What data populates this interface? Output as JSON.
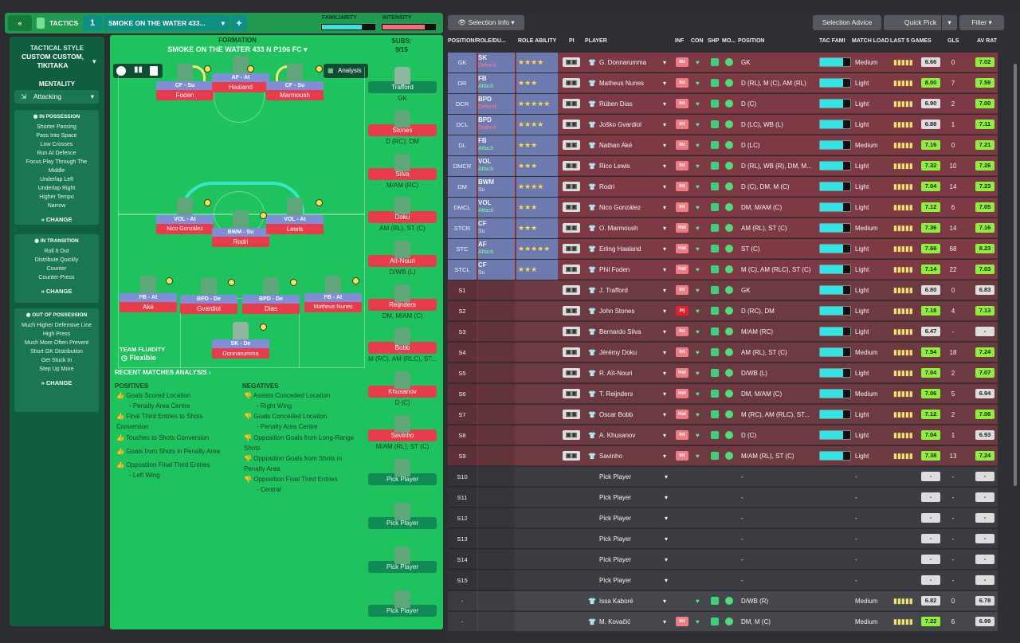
{
  "topbar": {
    "back": "«",
    "tactics_label": "TACTICS",
    "slot": "1",
    "tactic_name": "SMOKE ON THE WATER 433...",
    "add": "+",
    "familiarity": "FAMILIARITY",
    "intensity": "INTENSITY"
  },
  "left": {
    "style_label": "TACTICAL STYLE",
    "style_value": "CUSTOM CUSTOM, TIKITAKA",
    "mentality_label": "MENTALITY",
    "mentality_value": "Attacking",
    "possession": {
      "title": "IN POSSESSION",
      "items": [
        "Shorter Passing",
        "Pass Into Space",
        "Low Crosses",
        "Run At Defence",
        "Focus Play Through The Middle",
        "Underlap Left",
        "Underlap Right",
        "Higher Tempo",
        "Narrow"
      ]
    },
    "transition": {
      "title": "IN TRANSITION",
      "items": [
        "Roll It Out",
        "Distribute Quickly",
        "Counter",
        "Counter-Press"
      ]
    },
    "outposs": {
      "title": "OUT OF POSSESSION",
      "items": [
        "Much Higher Defensive Line",
        "High Press",
        "Much More Often Prevent Short GK Distribution",
        "Get Stuck In",
        "Step Up More"
      ]
    },
    "change": "CHANGE"
  },
  "pitch": {
    "formation_label": "FORMATION",
    "formation_name": "SMOKE ON THE WATER 433 N P106 FC",
    "analysis": "Analysis",
    "subs_label": "SUBS:",
    "subs_count": "9/15",
    "team_fluidity": "TEAM FLUIDITY",
    "fluidity_value": "Flexible",
    "players": [
      {
        "role": "CF - Su",
        "name": "Foden"
      },
      {
        "role": "AF - At",
        "name": "Haaland"
      },
      {
        "role": "CF - Su",
        "name": "Marmoush"
      },
      {
        "role": "VOL - At",
        "name": "Nico González"
      },
      {
        "role": "BWM - Su",
        "name": "Rodri"
      },
      {
        "role": "VOL - At",
        "name": "Lewis"
      },
      {
        "role": "FB - At",
        "name": "Aké"
      },
      {
        "role": "BPD - De",
        "name": "Gvardiol"
      },
      {
        "role": "BPD - De",
        "name": "Dias"
      },
      {
        "role": "FB - At",
        "name": "Matheus Nunes"
      },
      {
        "role": "SK - De",
        "name": "Donnarumma"
      }
    ],
    "subs": [
      {
        "name": "Trafford",
        "pos": "GK"
      },
      {
        "name": "Stones",
        "pos": "D (RC), DM"
      },
      {
        "name": "Silva",
        "pos": "M/AM (RC)"
      },
      {
        "name": "Doku",
        "pos": "AM (RL), ST (C)"
      },
      {
        "name": "Aït-Nouri",
        "pos": "D/WB (L)"
      },
      {
        "name": "Reijnders",
        "pos": "DM, M/AM (C)"
      },
      {
        "name": "Bobb",
        "pos": "M (RC), AM (RLC), ST..."
      },
      {
        "name": "Khusanov",
        "pos": "D (C)"
      },
      {
        "name": "Savinho",
        "pos": "M/AM (RL), ST (C)"
      }
    ],
    "pick": "Pick Player",
    "recent": "RECENT MATCHES ANALYSIS",
    "positives_label": "POSITIVES",
    "negatives_label": "NEGATIVES",
    "positives": [
      [
        "Goals Scored Location",
        "- Penalty Area Centre"
      ],
      [
        "Final Third Entries to Shots Conversion",
        ""
      ],
      [
        "Touches to Shots Conversion",
        ""
      ],
      [
        "Goals from Shots in Penalty Area",
        ""
      ],
      [
        "Opposition Final Third Entries",
        "- Left Wing"
      ]
    ],
    "negatives": [
      [
        "Assists Conceded Location",
        "- Right Wing"
      ],
      [
        "Goals Conceded Location",
        "- Penalty Area Centre"
      ],
      [
        "Opposition Goals from Long-Range Shots",
        ""
      ],
      [
        "Opposition Goals from Shots in Penalty Area",
        ""
      ],
      [
        "Opposition Final Third Entries",
        "- Central"
      ]
    ]
  },
  "right": {
    "selection_info": "Selection Info",
    "selection_advice": "Selection Advice",
    "quick_pick": "Quick Pick",
    "filter": "Filter",
    "cols": [
      "POSITION/ROLE/DU...",
      "ROLE ABILITY",
      "PI",
      "PLAYER",
      "INF",
      "CON",
      "SHP",
      "MO...",
      "POSITION",
      "TAC FAMI",
      "MATCH LOAD",
      "LAST 5 GAMES",
      "GLS",
      "AV RAT"
    ],
    "rows": [
      {
        "pos": "GK",
        "role": "SK",
        "duty": "Defend",
        "stars": "★★★★",
        "player": "G. Donnarumma",
        "position": "GK",
        "load": "Medium",
        "last": "6.66",
        "gls": "0",
        "av": "7.02",
        "inf": "Int"
      },
      {
        "pos": "DR",
        "role": "FB",
        "duty": "Attack",
        "stars": "★★★",
        "player": "Matheus Nunes",
        "position": "D (RL), M (C), AM (RL)",
        "load": "Light",
        "last": "8.00",
        "gls": "7",
        "av": "7.59",
        "inf": "Int"
      },
      {
        "pos": "DCR",
        "role": "BPD",
        "duty": "Defend",
        "stars": "★★★★★",
        "player": "Rúben Dias",
        "position": "D (C)",
        "load": "Light",
        "last": "6.90",
        "gls": "2",
        "av": "7.00",
        "inf": "Int"
      },
      {
        "pos": "DCL",
        "role": "BPD",
        "duty": "Defend",
        "stars": "★★★★",
        "player": "Joško Gvardiol",
        "position": "D (LC), WB (L)",
        "load": "Light",
        "last": "6.88",
        "gls": "1",
        "av": "7.11",
        "inf": "Int"
      },
      {
        "pos": "DL",
        "role": "FB",
        "duty": "Attack",
        "stars": "★★★",
        "player": "Nathan Aké",
        "position": "D (LC)",
        "load": "Medium",
        "last": "7.16",
        "gls": "0",
        "av": "7.21",
        "inf": "Int"
      },
      {
        "pos": "DMCR",
        "role": "VOL",
        "duty": "Attack",
        "stars": "★★★",
        "player": "Rico Lewis",
        "position": "D (RL), WB (R), DM, M...",
        "load": "Light",
        "last": "7.32",
        "gls": "10",
        "av": "7.26",
        "inf": "Int"
      },
      {
        "pos": "DM",
        "role": "BWM",
        "duty": "Su",
        "stars": "★★★★",
        "player": "Rodri",
        "position": "D (C), DM, M (C)",
        "load": "Light",
        "last": "7.04",
        "gls": "14",
        "av": "7.23",
        "inf": "Int"
      },
      {
        "pos": "DMCL",
        "role": "VOL",
        "duty": "Attack",
        "stars": "★★★",
        "player": "Nico González",
        "position": "DM, M/AM (C)",
        "load": "Light",
        "last": "7.12",
        "gls": "6",
        "av": "7.05",
        "inf": "Int"
      },
      {
        "pos": "STCR",
        "role": "CF",
        "duty": "Su",
        "stars": "★★★",
        "player": "O. Marmoush",
        "position": "AM (RL), ST (C)",
        "load": "Medium",
        "last": "7.36",
        "gls": "14",
        "av": "7.16",
        "inf": "Hol"
      },
      {
        "pos": "STC",
        "role": "AF",
        "duty": "Attack",
        "stars": "★★★★★",
        "player": "Erling Haaland",
        "position": "ST (C)",
        "load": "Light",
        "last": "7.66",
        "gls": "68",
        "av": "8.23",
        "inf": "Hol"
      },
      {
        "pos": "STCL",
        "role": "CF",
        "duty": "Su",
        "stars": "★★★",
        "player": "Phil Foden",
        "position": "M (C), AM (RLC), ST (C)",
        "load": "Light",
        "last": "7.14",
        "gls": "22",
        "av": "7.03",
        "inf": "Hol"
      },
      {
        "pos": "S1",
        "role": "",
        "duty": "",
        "stars": "",
        "player": "J. Trafford",
        "position": "GK",
        "load": "Light",
        "last": "6.80",
        "gls": "0",
        "av": "6.83",
        "inf": "Int"
      },
      {
        "pos": "S2",
        "role": "",
        "duty": "",
        "stars": "",
        "player": "John Stones",
        "position": "D (RC), DM",
        "load": "Light",
        "last": "7.18",
        "gls": "4",
        "av": "7.13",
        "inf": "Inj"
      },
      {
        "pos": "S3",
        "role": "",
        "duty": "",
        "stars": "",
        "player": "Bernardo Silva",
        "position": "M/AM (RC)",
        "load": "Light",
        "last": "6.47",
        "gls": "-",
        "av": "-",
        "inf": "Int"
      },
      {
        "pos": "S4",
        "role": "",
        "duty": "",
        "stars": "",
        "player": "Jérémy Doku",
        "position": "AM (RL), ST (C)",
        "load": "Medium",
        "last": "7.54",
        "gls": "18",
        "av": "7.24",
        "inf": "Int"
      },
      {
        "pos": "S5",
        "role": "",
        "duty": "",
        "stars": "",
        "player": "R. Aït-Nouri",
        "position": "D/WB (L)",
        "load": "Light",
        "last": "7.04",
        "gls": "2",
        "av": "7.07",
        "inf": "Hol"
      },
      {
        "pos": "S6",
        "role": "",
        "duty": "",
        "stars": "",
        "player": "T. Reijnders",
        "position": "DM, M/AM (C)",
        "load": "Medium",
        "last": "7.06",
        "gls": "5",
        "av": "6.94",
        "inf": "Hol"
      },
      {
        "pos": "S7",
        "role": "",
        "duty": "",
        "stars": "",
        "player": "Oscar Bobb",
        "position": "M (RC), AM (RLC), ST...",
        "load": "Light",
        "last": "7.12",
        "gls": "2",
        "av": "7.06",
        "inf": "Hol"
      },
      {
        "pos": "S8",
        "role": "",
        "duty": "",
        "stars": "",
        "player": "A. Khusanov",
        "position": "D (C)",
        "load": "Light",
        "last": "7.04",
        "gls": "1",
        "av": "6.93",
        "inf": "Int"
      },
      {
        "pos": "S9",
        "role": "",
        "duty": "",
        "stars": "",
        "player": "Savinho",
        "position": "M/AM (RL), ST (C)",
        "load": "Light",
        "last": "7.38",
        "gls": "13",
        "av": "7.24",
        "inf": "Int"
      },
      {
        "pos": "S10",
        "player": "Pick Player",
        "position": "-",
        "load": "-",
        "last": "-",
        "gls": "-",
        "av": "-"
      },
      {
        "pos": "S11",
        "player": "Pick Player",
        "position": "-",
        "load": "-",
        "last": "-",
        "gls": "-",
        "av": "-"
      },
      {
        "pos": "S12",
        "player": "Pick Player",
        "position": "-",
        "load": "-",
        "last": "-",
        "gls": "-",
        "av": "-"
      },
      {
        "pos": "S13",
        "player": "Pick Player",
        "position": "-",
        "load": "-",
        "last": "-",
        "gls": "-",
        "av": "-"
      },
      {
        "pos": "S14",
        "player": "Pick Player",
        "position": "-",
        "load": "-",
        "last": "-",
        "gls": "-",
        "av": "-"
      },
      {
        "pos": "S15",
        "player": "Pick Player",
        "position": "-",
        "load": "-",
        "last": "-",
        "gls": "-",
        "av": "-"
      },
      {
        "pos": "-",
        "player": "Issa Kaboré",
        "position": "D/WB (R)",
        "load": "Medium",
        "last": "6.82",
        "gls": "0",
        "av": "6.78",
        "inf": ""
      },
      {
        "pos": "-",
        "player": "M. Kovačić",
        "position": "DM, M (C)",
        "load": "Medium",
        "last": "7.22",
        "gls": "6",
        "av": "6.99",
        "inf": "Int"
      }
    ]
  },
  "colors": {
    "accent": "#1ec35e",
    "red_row": "#7e3a44",
    "cyan": "#2ee6e6",
    "green_rating": "#8ef03a"
  }
}
